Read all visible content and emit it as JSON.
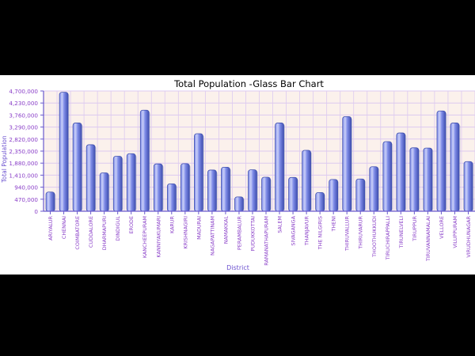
{
  "chart_data": {
    "type": "bar",
    "title": "Total Population  -Glass Bar Chart",
    "xlabel": "District",
    "ylabel": "Total Population",
    "ylim": [
      0,
      4700000
    ],
    "yticks": [
      0,
      470000,
      940000,
      1410000,
      1880000,
      2350000,
      2820000,
      3290000,
      3760000,
      4230000,
      4700000
    ],
    "ytick_labels": [
      "0",
      "470,000",
      "940,000",
      "1,410,000",
      "1,880,000",
      "2,350,000",
      "2,820,000",
      "3,290,000",
      "3,760,000",
      "4,230,000",
      "4,700,000"
    ],
    "grid": true,
    "categories": [
      "ARIYALUR",
      "CHENNAI",
      "COIMBATORE",
      "CUDDALORE",
      "DHARMAPURI",
      "DINDIGUL",
      "ERODE",
      "KANCHEEPURAM",
      "KANNIYAKUMARI",
      "KARUR",
      "KRISHNAGIRI",
      "MADURAI",
      "NAGAPATTINAM",
      "NAMAKKAL",
      "PERAMBALUR",
      "PUDUKKOTTAI",
      "RAMANATHAPURAM",
      "SALEM",
      "SIVAGANGA",
      "THANJAVUR",
      "THE NILGIRIS",
      "THENI",
      "THIRUVALLUR",
      "THIRUVARUR",
      "THOOTHUKKUDI",
      "TIRUCHIRAPPALLI",
      "TIRUNELVELI",
      "TIRUPPUR",
      "TIRUVANNAMALAI",
      "VELLORE",
      "VILUPPURAM",
      "VIRUDHUNAGAR"
    ],
    "values": [
      750000,
      4650000,
      3450000,
      2600000,
      1500000,
      2150000,
      2250000,
      3950000,
      1850000,
      1070000,
      1860000,
      3030000,
      1610000,
      1720000,
      560000,
      1620000,
      1330000,
      3450000,
      1320000,
      2380000,
      730000,
      1240000,
      3700000,
      1260000,
      1740000,
      2720000,
      3060000,
      2480000,
      2470000,
      3920000,
      3450000,
      1940000
    ],
    "colors": {
      "bar": "#7f8ce8",
      "bar_highlight": "#c9cff8",
      "bar_edge": "#4050b0",
      "plot_bg": "#fbf1ec",
      "grid": "#dcc9f0",
      "axis": "#6a5acd",
      "tick_label": "#8a3fc8",
      "axis_title": "#6a4fcf",
      "title": "#000000",
      "page_bg": "#000000"
    }
  }
}
